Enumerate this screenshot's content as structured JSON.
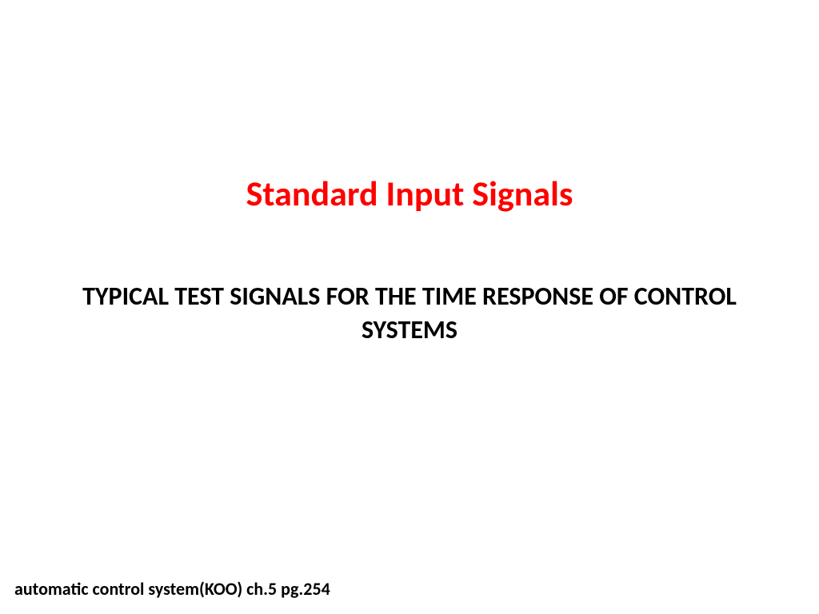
{
  "slide": {
    "title": {
      "text": "Standard Input Signals",
      "color": "#ff0000",
      "fontsize": 44,
      "fontweight": "bold"
    },
    "subtitle": {
      "text": "TYPICAL TEST SIGNALS FOR THE TIME RESPONSE OF CONTROL SYSTEMS",
      "color": "#000000",
      "fontsize": 32,
      "fontweight": "bold"
    },
    "footer": {
      "text": "automatic control system(KOO) ch.5 pg.254",
      "color": "#000000",
      "fontsize": 22,
      "fontweight": "bold"
    },
    "background_color": "#ffffff"
  }
}
